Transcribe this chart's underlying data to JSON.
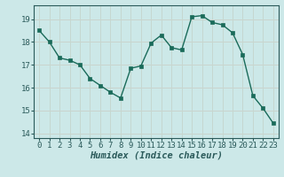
{
  "x": [
    0,
    1,
    2,
    3,
    4,
    5,
    6,
    7,
    8,
    9,
    10,
    11,
    12,
    13,
    14,
    15,
    16,
    17,
    18,
    19,
    20,
    21,
    22,
    23
  ],
  "y": [
    18.5,
    18.0,
    17.3,
    17.2,
    17.0,
    16.4,
    16.1,
    15.8,
    15.55,
    16.85,
    16.95,
    17.95,
    18.3,
    17.75,
    17.65,
    19.1,
    19.15,
    18.85,
    18.75,
    18.4,
    17.45,
    15.65,
    15.1,
    14.45
  ],
  "line_color": "#1a6b5a",
  "marker": "s",
  "marker_size": 2.5,
  "bg_color": "#cce8e8",
  "grid_color_major": "#b0d0d0",
  "grid_color_minor": "#daeaea",
  "xlabel": "Humidex (Indice chaleur)",
  "ylim": [
    13.8,
    19.6
  ],
  "xlim": [
    -0.5,
    23.5
  ],
  "yticks": [
    14,
    15,
    16,
    17,
    18,
    19
  ],
  "xticks": [
    0,
    1,
    2,
    3,
    4,
    5,
    6,
    7,
    8,
    9,
    10,
    11,
    12,
    13,
    14,
    15,
    16,
    17,
    18,
    19,
    20,
    21,
    22,
    23
  ],
  "tick_fontsize": 6.5,
  "xlabel_fontsize": 7.5,
  "linewidth": 1.0
}
